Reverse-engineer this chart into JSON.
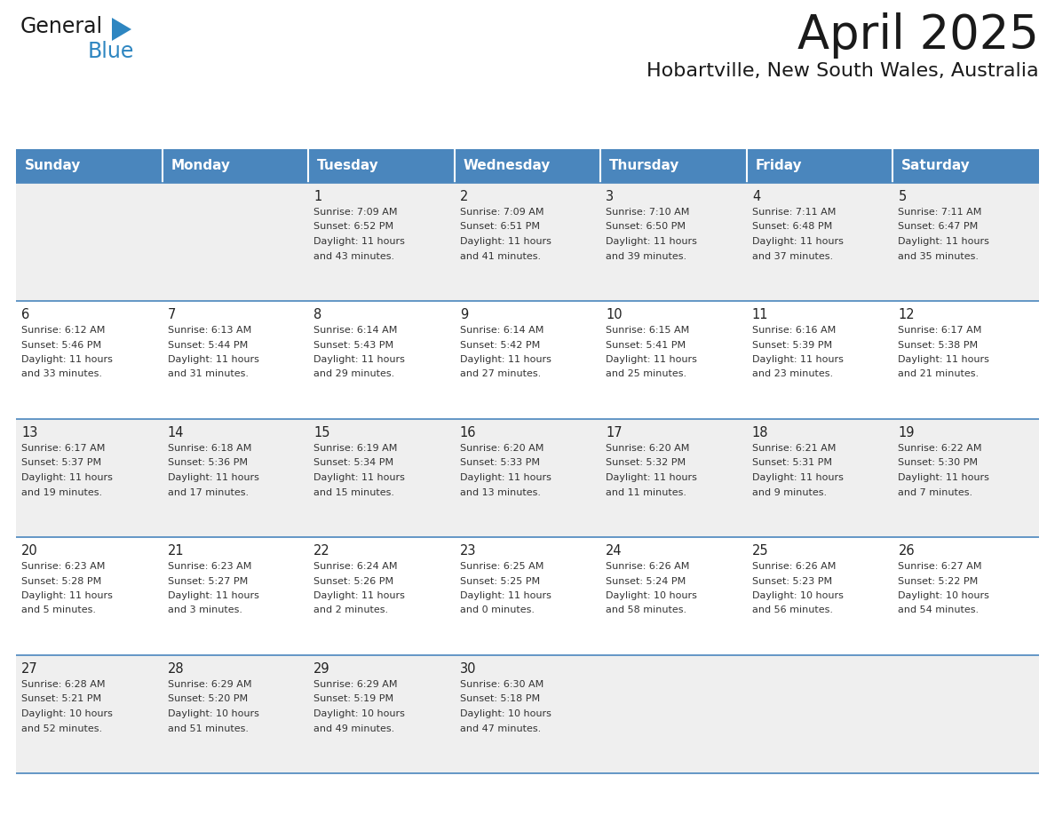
{
  "title": "April 2025",
  "subtitle": "Hobartville, New South Wales, Australia",
  "header_bg_color": "#4a86bd",
  "header_text_color": "#FFFFFF",
  "cell_bg_color_even": "#EFEFEF",
  "cell_bg_color_odd": "#FFFFFF",
  "day_headers": [
    "Sunday",
    "Monday",
    "Tuesday",
    "Wednesday",
    "Thursday",
    "Friday",
    "Saturday"
  ],
  "title_color": "#1a1a1a",
  "subtitle_color": "#1a1a1a",
  "line_color": "#4a86bd",
  "day_number_color": "#222222",
  "cell_text_color": "#333333",
  "weeks": [
    [
      {
        "day": null,
        "text": ""
      },
      {
        "day": null,
        "text": ""
      },
      {
        "day": 1,
        "text": "Sunrise: 7:09 AM\nSunset: 6:52 PM\nDaylight: 11 hours\nand 43 minutes."
      },
      {
        "day": 2,
        "text": "Sunrise: 7:09 AM\nSunset: 6:51 PM\nDaylight: 11 hours\nand 41 minutes."
      },
      {
        "day": 3,
        "text": "Sunrise: 7:10 AM\nSunset: 6:50 PM\nDaylight: 11 hours\nand 39 minutes."
      },
      {
        "day": 4,
        "text": "Sunrise: 7:11 AM\nSunset: 6:48 PM\nDaylight: 11 hours\nand 37 minutes."
      },
      {
        "day": 5,
        "text": "Sunrise: 7:11 AM\nSunset: 6:47 PM\nDaylight: 11 hours\nand 35 minutes."
      }
    ],
    [
      {
        "day": 6,
        "text": "Sunrise: 6:12 AM\nSunset: 5:46 PM\nDaylight: 11 hours\nand 33 minutes."
      },
      {
        "day": 7,
        "text": "Sunrise: 6:13 AM\nSunset: 5:44 PM\nDaylight: 11 hours\nand 31 minutes."
      },
      {
        "day": 8,
        "text": "Sunrise: 6:14 AM\nSunset: 5:43 PM\nDaylight: 11 hours\nand 29 minutes."
      },
      {
        "day": 9,
        "text": "Sunrise: 6:14 AM\nSunset: 5:42 PM\nDaylight: 11 hours\nand 27 minutes."
      },
      {
        "day": 10,
        "text": "Sunrise: 6:15 AM\nSunset: 5:41 PM\nDaylight: 11 hours\nand 25 minutes."
      },
      {
        "day": 11,
        "text": "Sunrise: 6:16 AM\nSunset: 5:39 PM\nDaylight: 11 hours\nand 23 minutes."
      },
      {
        "day": 12,
        "text": "Sunrise: 6:17 AM\nSunset: 5:38 PM\nDaylight: 11 hours\nand 21 minutes."
      }
    ],
    [
      {
        "day": 13,
        "text": "Sunrise: 6:17 AM\nSunset: 5:37 PM\nDaylight: 11 hours\nand 19 minutes."
      },
      {
        "day": 14,
        "text": "Sunrise: 6:18 AM\nSunset: 5:36 PM\nDaylight: 11 hours\nand 17 minutes."
      },
      {
        "day": 15,
        "text": "Sunrise: 6:19 AM\nSunset: 5:34 PM\nDaylight: 11 hours\nand 15 minutes."
      },
      {
        "day": 16,
        "text": "Sunrise: 6:20 AM\nSunset: 5:33 PM\nDaylight: 11 hours\nand 13 minutes."
      },
      {
        "day": 17,
        "text": "Sunrise: 6:20 AM\nSunset: 5:32 PM\nDaylight: 11 hours\nand 11 minutes."
      },
      {
        "day": 18,
        "text": "Sunrise: 6:21 AM\nSunset: 5:31 PM\nDaylight: 11 hours\nand 9 minutes."
      },
      {
        "day": 19,
        "text": "Sunrise: 6:22 AM\nSunset: 5:30 PM\nDaylight: 11 hours\nand 7 minutes."
      }
    ],
    [
      {
        "day": 20,
        "text": "Sunrise: 6:23 AM\nSunset: 5:28 PM\nDaylight: 11 hours\nand 5 minutes."
      },
      {
        "day": 21,
        "text": "Sunrise: 6:23 AM\nSunset: 5:27 PM\nDaylight: 11 hours\nand 3 minutes."
      },
      {
        "day": 22,
        "text": "Sunrise: 6:24 AM\nSunset: 5:26 PM\nDaylight: 11 hours\nand 2 minutes."
      },
      {
        "day": 23,
        "text": "Sunrise: 6:25 AM\nSunset: 5:25 PM\nDaylight: 11 hours\nand 0 minutes."
      },
      {
        "day": 24,
        "text": "Sunrise: 6:26 AM\nSunset: 5:24 PM\nDaylight: 10 hours\nand 58 minutes."
      },
      {
        "day": 25,
        "text": "Sunrise: 6:26 AM\nSunset: 5:23 PM\nDaylight: 10 hours\nand 56 minutes."
      },
      {
        "day": 26,
        "text": "Sunrise: 6:27 AM\nSunset: 5:22 PM\nDaylight: 10 hours\nand 54 minutes."
      }
    ],
    [
      {
        "day": 27,
        "text": "Sunrise: 6:28 AM\nSunset: 5:21 PM\nDaylight: 10 hours\nand 52 minutes."
      },
      {
        "day": 28,
        "text": "Sunrise: 6:29 AM\nSunset: 5:20 PM\nDaylight: 10 hours\nand 51 minutes."
      },
      {
        "day": 29,
        "text": "Sunrise: 6:29 AM\nSunset: 5:19 PM\nDaylight: 10 hours\nand 49 minutes."
      },
      {
        "day": 30,
        "text": "Sunrise: 6:30 AM\nSunset: 5:18 PM\nDaylight: 10 hours\nand 47 minutes."
      },
      {
        "day": null,
        "text": ""
      },
      {
        "day": null,
        "text": ""
      },
      {
        "day": null,
        "text": ""
      }
    ]
  ]
}
